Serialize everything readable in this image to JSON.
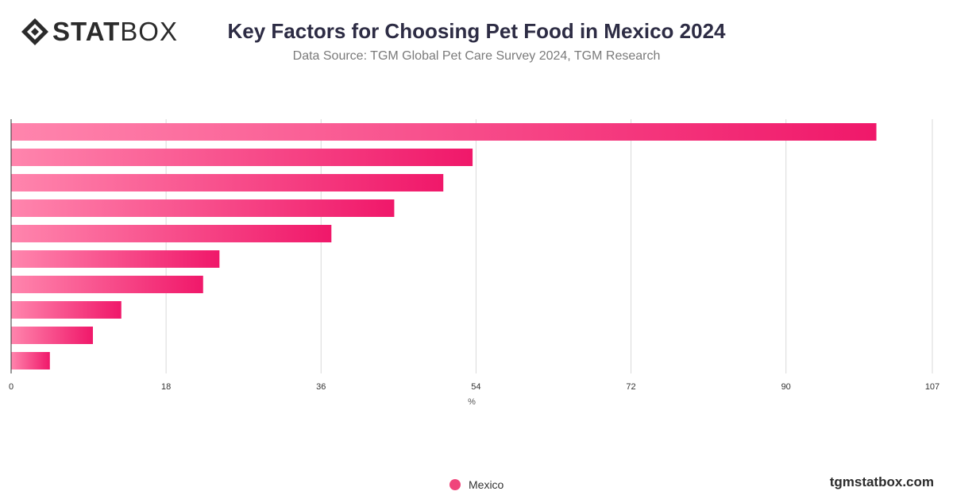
{
  "header": {
    "logo_text_bold": "STAT",
    "logo_text_light": "BOX",
    "title": "Key Factors for Choosing Pet Food in Mexico 2024",
    "subtitle": "Data Source: TGM Global Pet Care Survey 2024, TGM Research"
  },
  "footer": {
    "brand": "tgmstatbox.com"
  },
  "colors": {
    "bar_start": "#ff85ad",
    "bar_end": "#f0186a",
    "grid": "#d9d9d9",
    "axis": "#333333",
    "legend_dot": "#f0457b"
  },
  "chart_data": {
    "type": "bar",
    "orientation": "horizontal",
    "title": "Key Factors for Choosing Pet Food in Mexico 2024",
    "subtitle": "Data Source: TGM Global Pet Care Survey 2024, TGM Research",
    "xlabel": "%",
    "ylabel": "",
    "xlim": [
      0,
      107
    ],
    "x_ticks": [
      0,
      18,
      36,
      54,
      72,
      90,
      107
    ],
    "grid": true,
    "legend_position": "bottom",
    "series": [
      {
        "name": "Mexico",
        "values": [
          100.5,
          53.6,
          50.2,
          44.5,
          37.2,
          24.2,
          22.3,
          12.8,
          9.5,
          4.5
        ]
      }
    ]
  }
}
